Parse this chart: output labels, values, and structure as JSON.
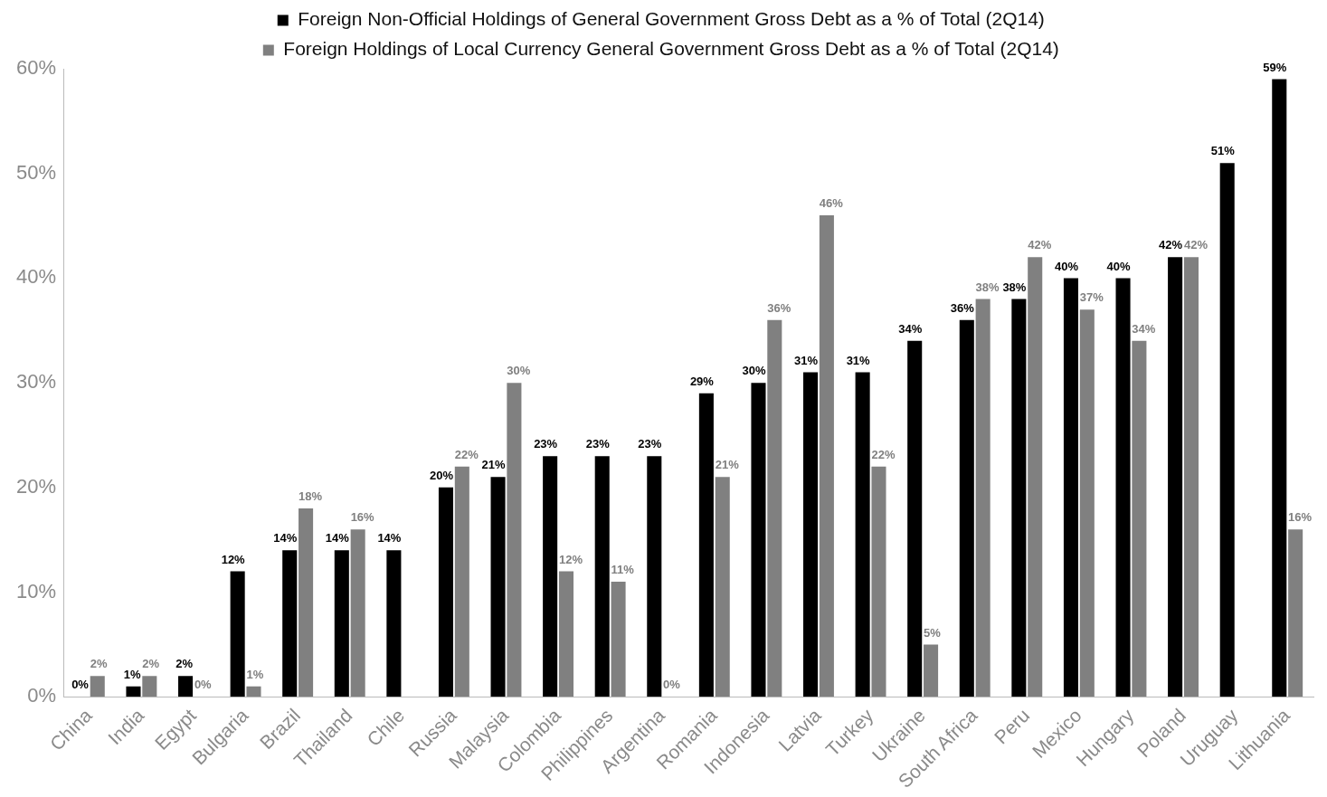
{
  "chart_data": {
    "type": "bar",
    "categories": [
      "China",
      "India",
      "Egypt",
      "Bulgaria",
      "Brazil",
      "Thailand",
      "Chile",
      "Russia",
      "Malaysia",
      "Colombia",
      "Philippines",
      "Argentina",
      "Romania",
      "Indonesia",
      "Latvia",
      "Turkey",
      "Ukraine",
      "South Africa",
      "Peru",
      "Mexico",
      "Hungary",
      "Poland",
      "Uruguay",
      "Lithuania"
    ],
    "series": [
      {
        "name": "Foreign Non-Official Holdings of General Government Gross Debt as a % of Total (2Q14)",
        "color": "#000000",
        "values": [
          0,
          1,
          2,
          12,
          14,
          14,
          14,
          20,
          21,
          23,
          23,
          23,
          29,
          30,
          31,
          31,
          34,
          36,
          38,
          40,
          40,
          42,
          51,
          59
        ],
        "value_labels": [
          "0%",
          "1%",
          "2%",
          "12%",
          "14%",
          "14%",
          "14%",
          "20%",
          "21%",
          "23%",
          "23%",
          "23%",
          "29%",
          "30%",
          "31%",
          "31%",
          "34%",
          "36%",
          "38%",
          "40%",
          "40%",
          "42%",
          "51%",
          "59%"
        ]
      },
      {
        "name": "Foreign Holdings of Local Currency General Government Gross Debt as a % of Total (2Q14)",
        "color": "#808080",
        "values": [
          2,
          2,
          0,
          1,
          18,
          16,
          null,
          22,
          30,
          12,
          11,
          0,
          21,
          36,
          46,
          22,
          5,
          38,
          42,
          37,
          34,
          42,
          null,
          16
        ],
        "value_labels": [
          "2%",
          "2%",
          "0%",
          "1%",
          "18%",
          "16%",
          null,
          "22%",
          "30%",
          "12%",
          "11%",
          "0%",
          "21%",
          "36%",
          "46%",
          "22%",
          "5%",
          "38%",
          "42%",
          "37%",
          "34%",
          "42%",
          null,
          "16%"
        ]
      }
    ],
    "ylim": [
      0,
      60
    ],
    "yticks": [
      {
        "value": 0,
        "label": "0%"
      },
      {
        "value": 10,
        "label": "10%"
      },
      {
        "value": 20,
        "label": "20%"
      },
      {
        "value": 30,
        "label": "30%"
      },
      {
        "value": 40,
        "label": "40%"
      },
      {
        "value": 50,
        "label": "50%"
      },
      {
        "value": 60,
        "label": "60%"
      }
    ],
    "grid": false,
    "legend": "top"
  }
}
